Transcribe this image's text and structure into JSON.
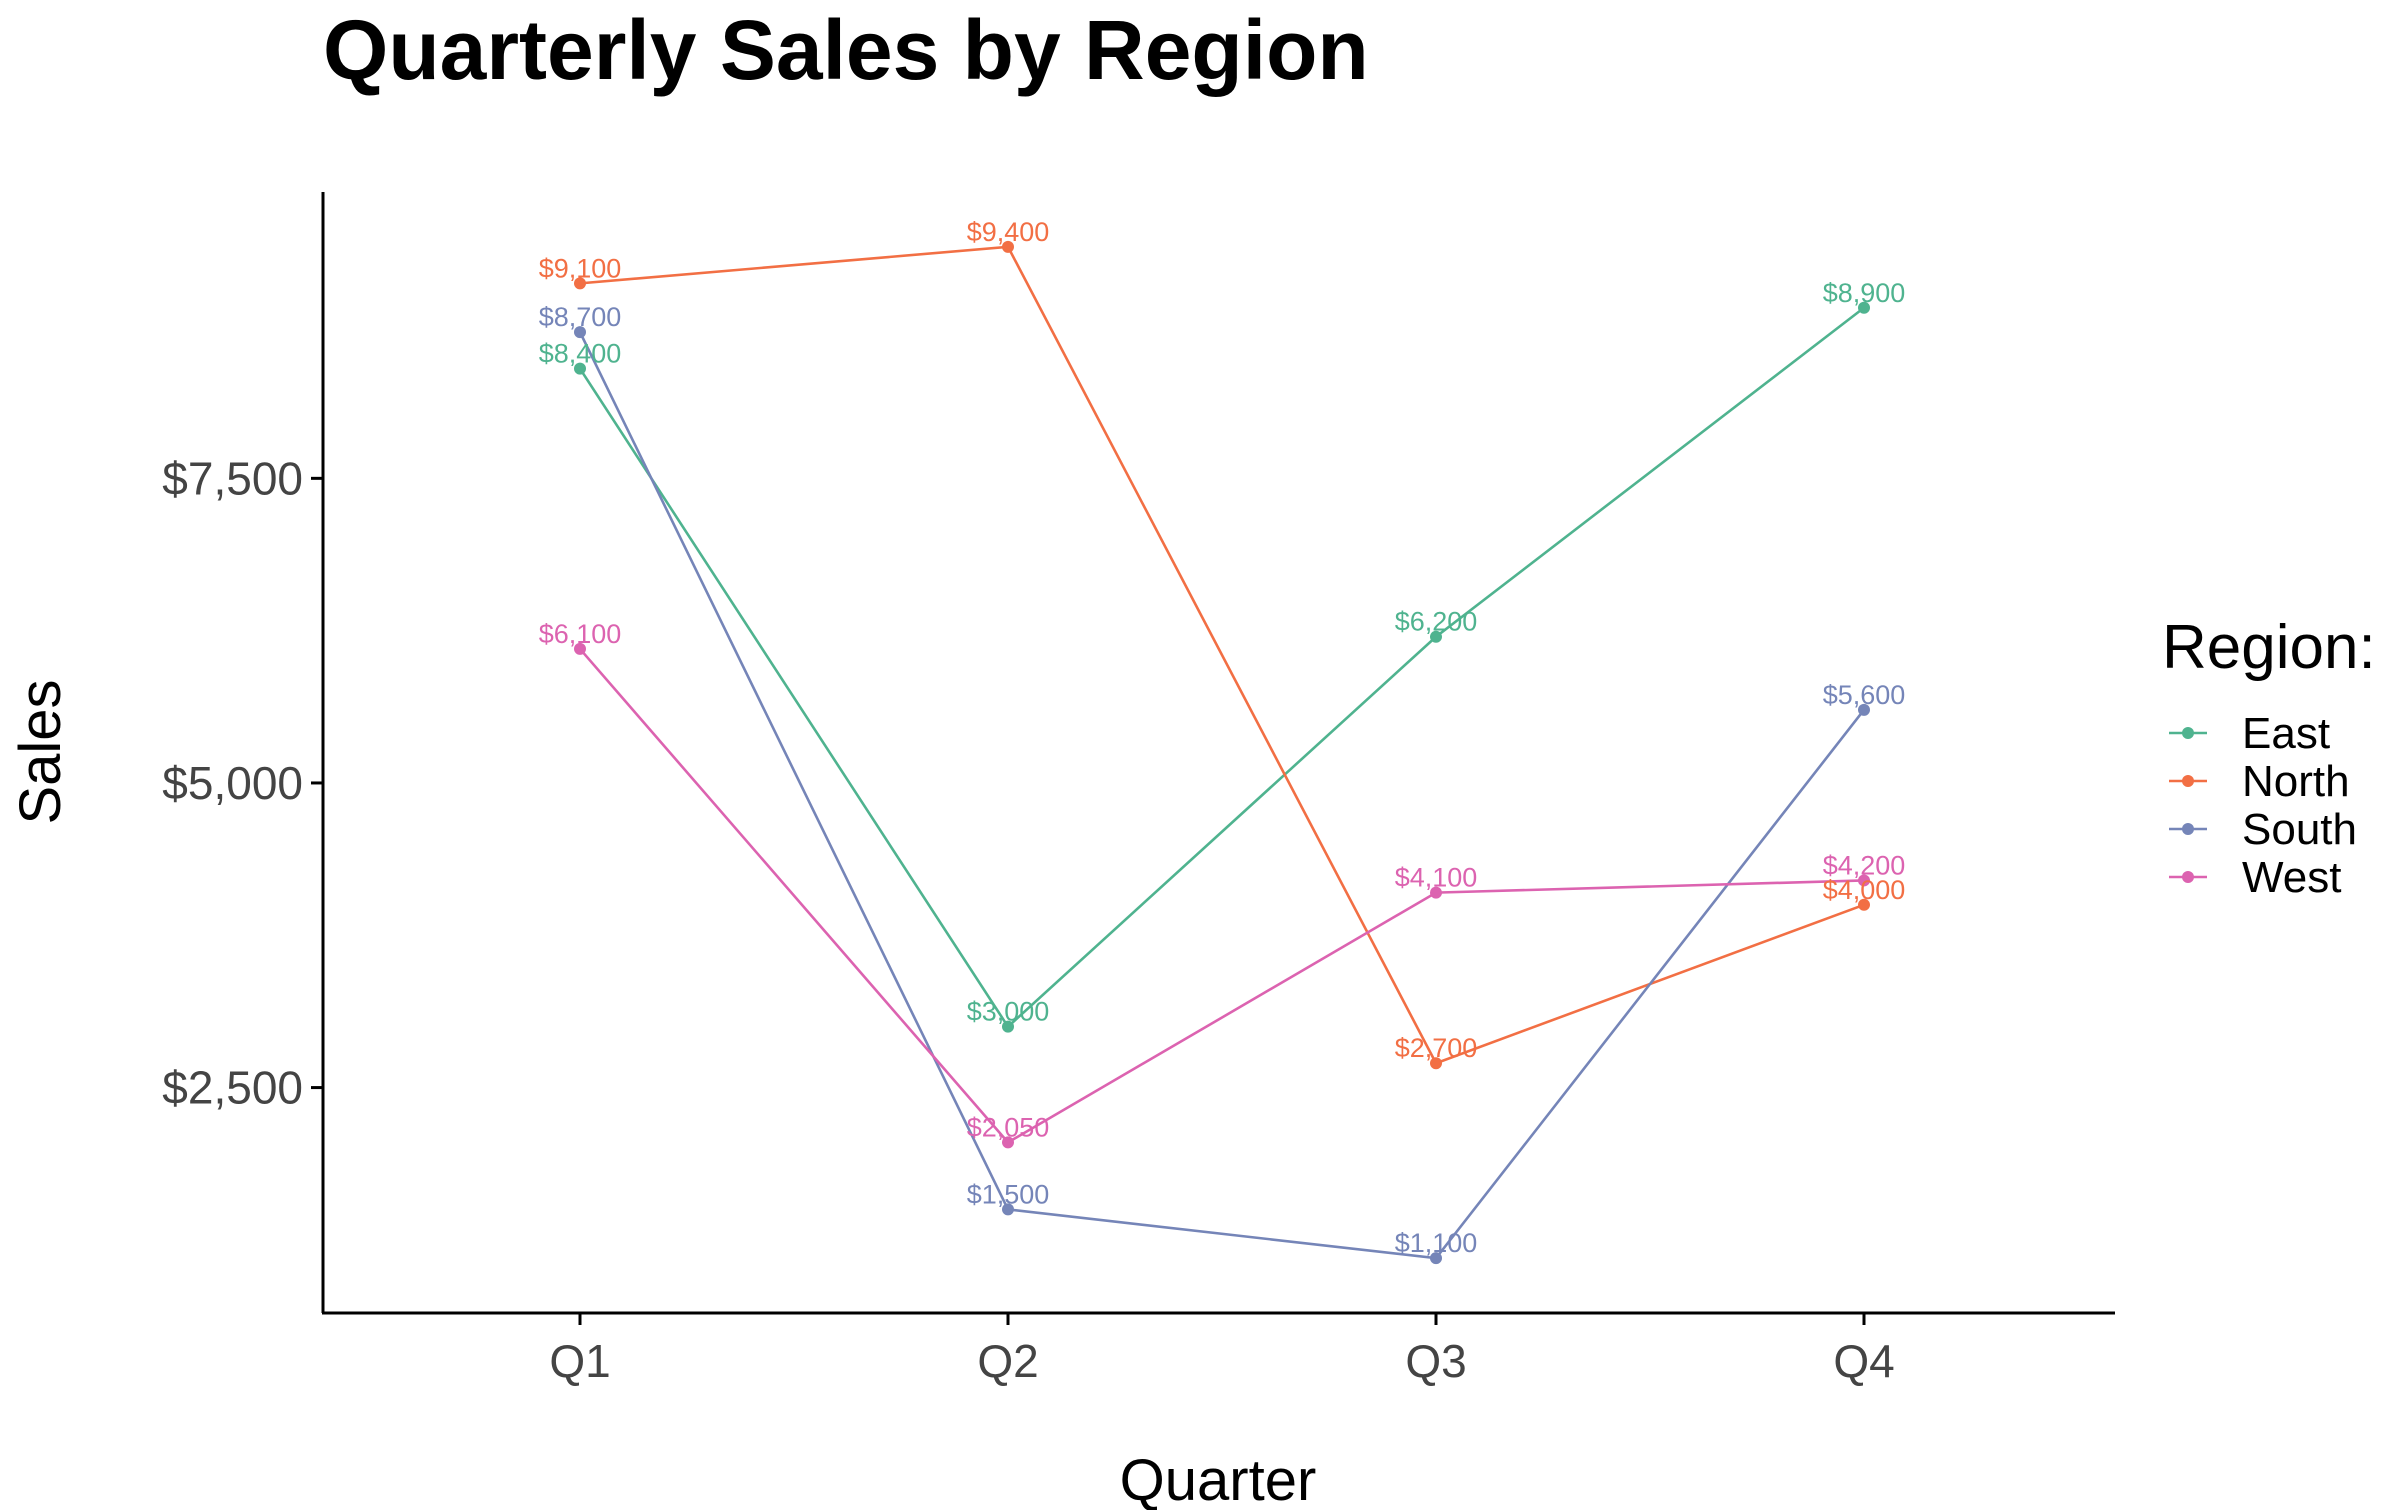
{
  "chart_data": {
    "type": "line",
    "title": "Quarterly Sales by Region",
    "xlabel": "Quarter",
    "ylabel": "Sales",
    "categories": [
      "Q1",
      "Q2",
      "Q3",
      "Q4"
    ],
    "ylim": [
      650,
      9850
    ],
    "yticks": [
      2500,
      5000,
      7500
    ],
    "ytick_labels": [
      "$2,500",
      "$5,000",
      "$7,500"
    ],
    "grid": false,
    "legend": {
      "title": "Region:",
      "position": "right"
    },
    "series": [
      {
        "name": "East",
        "color": "#4fb38f",
        "values": [
          8400,
          3000,
          6200,
          8900
        ],
        "labels": [
          "$8,400",
          "$3,000",
          "$6,200",
          "$8,900"
        ]
      },
      {
        "name": "North",
        "color": "#f26f44",
        "values": [
          9100,
          9400,
          2700,
          4000
        ],
        "labels": [
          "$9,100",
          "$9,400",
          "$2,700",
          "$4,000"
        ]
      },
      {
        "name": "South",
        "color": "#7585b8",
        "values": [
          8700,
          1500,
          1100,
          5600
        ],
        "labels": [
          "$8,700",
          "$1,500",
          "$1,100",
          "$5,600"
        ]
      },
      {
        "name": "West",
        "color": "#dc63b0",
        "values": [
          6100,
          2050,
          4100,
          4200
        ],
        "labels": [
          "$6,100",
          "$2,050",
          "$4,100",
          "$4,200"
        ]
      }
    ]
  }
}
